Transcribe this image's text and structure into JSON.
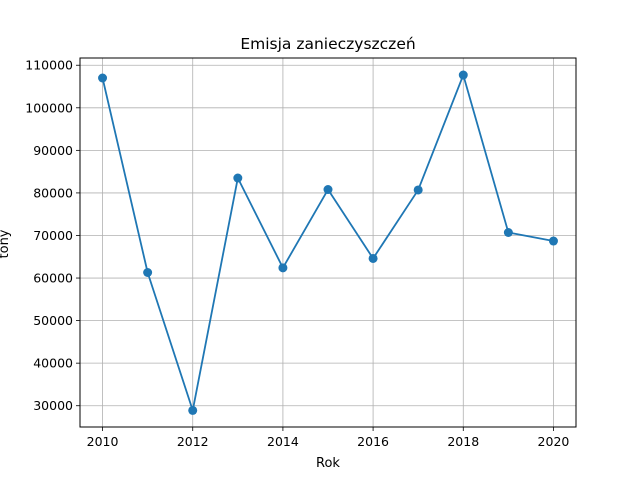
{
  "chart_data": {
    "type": "line",
    "title": "Emisja zanieczyszczeń",
    "xlabel": "Rok",
    "ylabel": "tony",
    "x": [
      2010,
      2011,
      2012,
      2013,
      2014,
      2015,
      2016,
      2017,
      2018,
      2019,
      2020
    ],
    "series": [
      {
        "values": [
          107000,
          61300,
          28900,
          83500,
          62400,
          80800,
          64600,
          80700,
          107700,
          70700,
          68700
        ],
        "color": "#1f77b4",
        "marker": "circle"
      }
    ],
    "xlim": [
      2009.5,
      2020.5
    ],
    "ylim": [
      25000,
      111700
    ],
    "xticks": [
      2010,
      2012,
      2014,
      2016,
      2018,
      2020
    ],
    "yticks": [
      30000,
      40000,
      50000,
      60000,
      70000,
      80000,
      90000,
      100000,
      110000
    ],
    "grid": true,
    "legend": "none"
  }
}
